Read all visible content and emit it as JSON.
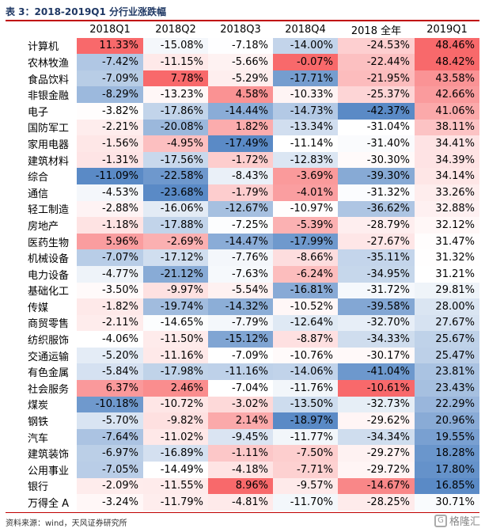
{
  "title": "表 3：2018-2019Q1 分行业涨跌幅",
  "columns": [
    "2018Q1",
    "2018Q2",
    "2018Q3",
    "2018Q4",
    "2018 全年",
    "2019Q1"
  ],
  "rows": [
    {
      "name": "计算机",
      "values": [
        "11.33%",
        "-15.08%",
        "-7.18%",
        "-14.00%",
        "-24.53%",
        "48.46%"
      ]
    },
    {
      "name": "农林牧渔",
      "values": [
        "-7.42%",
        "-11.15%",
        "-5.66%",
        "-0.07%",
        "-22.44%",
        "48.42%"
      ]
    },
    {
      "name": "食品饮料",
      "values": [
        "-7.09%",
        "7.78%",
        "-5.29%",
        "-17.71%",
        "-21.95%",
        "43.58%"
      ]
    },
    {
      "name": "非银金融",
      "values": [
        "-8.29%",
        "-13.23%",
        "4.58%",
        "-10.33%",
        "-25.37%",
        "42.66%"
      ]
    },
    {
      "name": "电子",
      "values": [
        "-3.82%",
        "-17.86%",
        "-14.44%",
        "-14.73%",
        "-42.37%",
        "41.06%"
      ]
    },
    {
      "name": "国防军工",
      "values": [
        "-2.21%",
        "-20.08%",
        "1.82%",
        "-13.34%",
        "-31.04%",
        "38.11%"
      ]
    },
    {
      "name": "家用电器",
      "values": [
        "-1.56%",
        "-4.95%",
        "-17.49%",
        "-11.14%",
        "-31.40%",
        "34.41%"
      ]
    },
    {
      "name": "建筑材料",
      "values": [
        "-1.31%",
        "-17.56%",
        "-1.72%",
        "-12.83%",
        "-30.30%",
        "34.39%"
      ]
    },
    {
      "name": "综合",
      "values": [
        "-11.09%",
        "-22.58%",
        "-8.43%",
        "-3.69%",
        "-39.30%",
        "34.14%"
      ]
    },
    {
      "name": "通信",
      "values": [
        "-4.53%",
        "-23.68%",
        "-1.79%",
        "-4.01%",
        "-31.32%",
        "33.26%"
      ]
    },
    {
      "name": "轻工制造",
      "values": [
        "-2.88%",
        "-16.06%",
        "-12.67%",
        "-10.97%",
        "-36.62%",
        "32.88%"
      ]
    },
    {
      "name": "房地产",
      "values": [
        "-1.18%",
        "-17.88%",
        "-7.25%",
        "-5.39%",
        "-28.79%",
        "32.12%"
      ]
    },
    {
      "name": "医药生物",
      "values": [
        "5.96%",
        "-2.69%",
        "-14.47%",
        "-17.99%",
        "-27.67%",
        "31.47%"
      ]
    },
    {
      "name": "机械设备",
      "values": [
        "-7.07%",
        "-17.12%",
        "-7.76%",
        "-8.66%",
        "-35.11%",
        "31.32%"
      ]
    },
    {
      "name": "电力设备",
      "values": [
        "-4.77%",
        "-21.12%",
        "-7.63%",
        "-6.24%",
        "-34.95%",
        "31.21%"
      ]
    },
    {
      "name": "基础化工",
      "values": [
        "-3.50%",
        "-9.97%",
        "-5.54%",
        "-16.81%",
        "-31.72%",
        "29.81%"
      ]
    },
    {
      "name": "传媒",
      "values": [
        "-1.82%",
        "-19.74%",
        "-14.32%",
        "-10.52%",
        "-39.58%",
        "28.00%"
      ]
    },
    {
      "name": "商贸零售",
      "values": [
        "-2.11%",
        "-14.65%",
        "-7.79%",
        "-12.64%",
        "-32.70%",
        "27.67%"
      ]
    },
    {
      "name": "纺织服饰",
      "values": [
        "-4.06%",
        "-11.50%",
        "-15.12%",
        "-8.87%",
        "-34.33%",
        "25.67%"
      ]
    },
    {
      "name": "交通运输",
      "values": [
        "-5.20%",
        "-11.16%",
        "-7.09%",
        "-10.76%",
        "-30.17%",
        "25.47%"
      ]
    },
    {
      "name": "有色金属",
      "values": [
        "-5.84%",
        "-17.98%",
        "-11.16%",
        "-14.06%",
        "-41.04%",
        "23.81%"
      ]
    },
    {
      "name": "社会服务",
      "values": [
        "6.37%",
        "2.46%",
        "-7.04%",
        "-11.76%",
        "-10.61%",
        "23.43%"
      ]
    },
    {
      "name": "煤炭",
      "values": [
        "-10.18%",
        "-10.72%",
        "-3.02%",
        "-13.50%",
        "-32.73%",
        "22.29%"
      ]
    },
    {
      "name": "钢铁",
      "values": [
        "-5.70%",
        "-9.82%",
        "2.14%",
        "-18.97%",
        "-29.62%",
        "20.96%"
      ]
    },
    {
      "name": "汽车",
      "values": [
        "-7.64%",
        "-11.02%",
        "-9.45%",
        "-11.77%",
        "-34.34%",
        "19.55%"
      ]
    },
    {
      "name": "建筑装饰",
      "values": [
        "-6.97%",
        "-16.89%",
        "-1.11%",
        "-7.50%",
        "-29.27%",
        "18.28%"
      ]
    },
    {
      "name": "公用事业",
      "values": [
        "-7.05%",
        "-14.49%",
        "-4.18%",
        "-7.71%",
        "-29.72%",
        "17.80%"
      ]
    },
    {
      "name": "银行",
      "values": [
        "-2.09%",
        "-11.55%",
        "8.96%",
        "-9.57%",
        "-14.67%",
        "16.85%"
      ]
    },
    {
      "name": "万得全 A",
      "values": [
        "-3.24%",
        "-11.79%",
        "-4.81%",
        "-11.70%",
        "-28.25%",
        "30.71%"
      ]
    }
  ],
  "source": "资料来源：wind，天风证券研究所",
  "watermark": "格隆汇",
  "colors": {
    "positive": "#f8696b",
    "negative": "#5a8ac6",
    "neutral": "#ffffff",
    "title": "#1f3864",
    "rule": "#c00000"
  }
}
